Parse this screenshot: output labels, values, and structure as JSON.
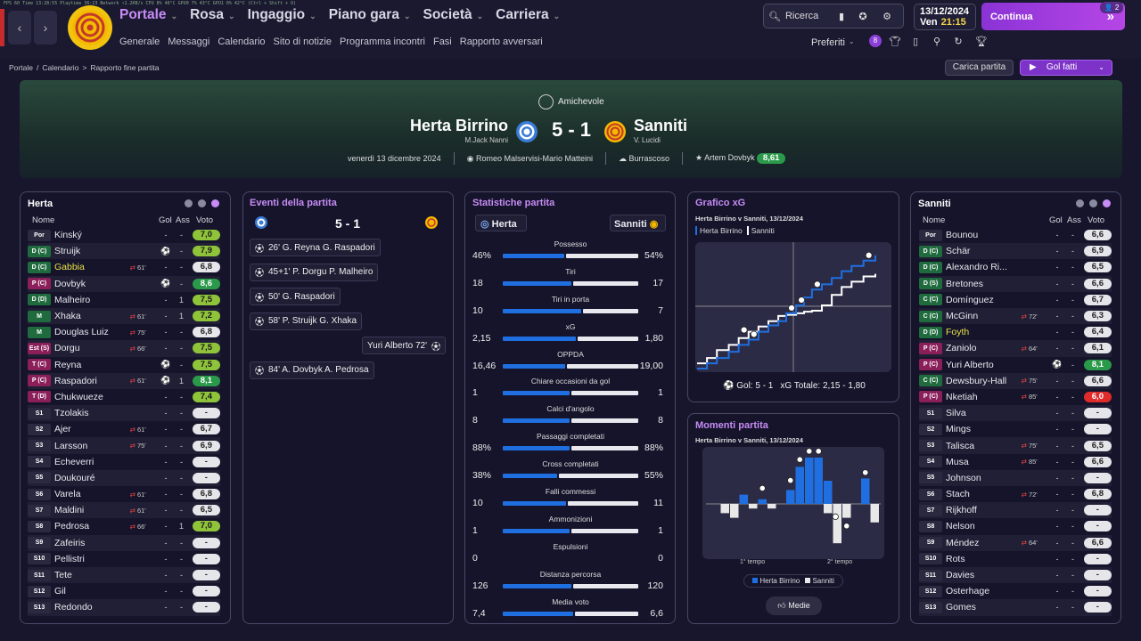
{
  "perf": "FPS 60   Time 13:28:55   Playtime 36:23   Network ↑1.2KB/s   CPU 8% 46°C   GPU0 7% 43°C   GPU1 0% 42°C   (Ctrl + Shift + O)",
  "nav": {
    "items": [
      "Portale",
      "Rosa",
      "Ingaggio",
      "Piano gara",
      "Società",
      "Carriera"
    ],
    "sub": [
      "Generale",
      "Messaggi",
      "Calendario",
      "Sito di notizie",
      "Programma incontri",
      "Fasi",
      "Rapporto avversari"
    ]
  },
  "toolbar": {
    "search": "Ricerca",
    "date": "13/12/2024",
    "day": "Ven",
    "time": "21:15",
    "continue": "Continua",
    "notif": "2",
    "prefs": "Preferiti",
    "badge": "8"
  },
  "breadcrumb": [
    "Portale",
    "Calendario",
    "Rapporto fine partita"
  ],
  "actions": {
    "load": "Carica partita",
    "goals": "Gol fatti"
  },
  "match": {
    "competition": "Amichevole",
    "home": "Herta Birrino",
    "home_coach": "M.Jack Nanni",
    "away": "Sanniti",
    "away_coach": "V. Lucidi",
    "score": "5 - 1",
    "date": "venerdì 13 dicembre 2024",
    "referees": "Romeo Malservisi-Mario Matteini",
    "weather": "Burrascoso",
    "motm": "Artem Dovbyk",
    "motm_rating": "8,61"
  },
  "home_panel": {
    "title": "Herta",
    "h_name": "Nome",
    "h_gol": "Gol",
    "h_ass": "Ass",
    "h_voto": "Voto"
  },
  "away_panel": {
    "title": "Sanniti",
    "h_name": "Nome",
    "h_gol": "Gol",
    "h_ass": "Ass",
    "h_voto": "Voto"
  },
  "home_players": [
    {
      "pos": "Por",
      "name": "Kinský",
      "evt": "",
      "g": "-",
      "a": "-",
      "r": "7,0"
    },
    {
      "pos": "D (C)",
      "name": "Struijk",
      "evt": "",
      "g": "⚽",
      "a": "-",
      "r": "7,9"
    },
    {
      "pos": "D (C)",
      "name": "Gabbia",
      "evt": "61'",
      "g": "-",
      "a": "-",
      "r": "6,8",
      "yellow": true
    },
    {
      "pos": "P (C)",
      "name": "Dovbyk",
      "evt": "",
      "g": "⚽",
      "a": "-",
      "r": "8,6"
    },
    {
      "pos": "D (D)",
      "name": "Malheiro",
      "evt": "",
      "g": "-",
      "a": "1",
      "r": "7,5"
    },
    {
      "pos": "M",
      "name": "Xhaka",
      "evt": "61'",
      "g": "-",
      "a": "1",
      "r": "7,2"
    },
    {
      "pos": "M",
      "name": "Douglas Luiz",
      "evt": "75'",
      "g": "-",
      "a": "-",
      "r": "6,8"
    },
    {
      "pos": "Est (S)",
      "name": "Dorgu",
      "evt": "66'",
      "g": "-",
      "a": "-",
      "r": "7,5"
    },
    {
      "pos": "T (C)",
      "name": "Reyna",
      "evt": "",
      "g": "⚽",
      "a": "-",
      "r": "7,5"
    },
    {
      "pos": "P (C)",
      "name": "Raspadori",
      "evt": "61'",
      "g": "⚽",
      "a": "1",
      "r": "8,1"
    },
    {
      "pos": "T (D)",
      "name": "Chukwueze",
      "evt": "",
      "g": "-",
      "a": "-",
      "r": "7,4"
    },
    {
      "pos": "S1",
      "name": "Tzolakis",
      "evt": "",
      "g": "-",
      "a": "-",
      "r": "-"
    },
    {
      "pos": "S2",
      "name": "Ajer",
      "evt": "61'",
      "g": "-",
      "a": "-",
      "r": "6,7"
    },
    {
      "pos": "S3",
      "name": "Larsson",
      "evt": "75'",
      "g": "-",
      "a": "-",
      "r": "6,9"
    },
    {
      "pos": "S4",
      "name": "Echeverri",
      "evt": "",
      "g": "-",
      "a": "-",
      "r": "-"
    },
    {
      "pos": "S5",
      "name": "Doukouré",
      "evt": "",
      "g": "-",
      "a": "-",
      "r": "-"
    },
    {
      "pos": "S6",
      "name": "Varela",
      "evt": "61'",
      "g": "-",
      "a": "-",
      "r": "6,8"
    },
    {
      "pos": "S7",
      "name": "Maldini",
      "evt": "61'",
      "g": "-",
      "a": "-",
      "r": "6,5"
    },
    {
      "pos": "S8",
      "name": "Pedrosa",
      "evt": "66'",
      "g": "-",
      "a": "1",
      "r": "7,0"
    },
    {
      "pos": "S9",
      "name": "Zafeiris",
      "evt": "",
      "g": "-",
      "a": "-",
      "r": "-"
    },
    {
      "pos": "S10",
      "name": "Pellistri",
      "evt": "",
      "g": "-",
      "a": "-",
      "r": "-"
    },
    {
      "pos": "S11",
      "name": "Tete",
      "evt": "",
      "g": "-",
      "a": "-",
      "r": "-"
    },
    {
      "pos": "S12",
      "name": "Gil",
      "evt": "",
      "g": "-",
      "a": "-",
      "r": "-"
    },
    {
      "pos": "S13",
      "name": "Redondo",
      "evt": "",
      "g": "-",
      "a": "-",
      "r": "-"
    }
  ],
  "away_players": [
    {
      "pos": "Por",
      "name": "Bounou",
      "evt": "",
      "g": "-",
      "a": "-",
      "r": "6,6"
    },
    {
      "pos": "D (C)",
      "name": "Schär",
      "evt": "",
      "g": "-",
      "a": "-",
      "r": "6,9"
    },
    {
      "pos": "D (C)",
      "name": "Alexandro Ri...",
      "evt": "",
      "g": "-",
      "a": "-",
      "r": "6,5"
    },
    {
      "pos": "D (S)",
      "name": "Bretones",
      "evt": "",
      "g": "-",
      "a": "-",
      "r": "6,6"
    },
    {
      "pos": "C (C)",
      "name": "Domínguez",
      "evt": "",
      "g": "-",
      "a": "-",
      "r": "6,7"
    },
    {
      "pos": "C (C)",
      "name": "McGinn",
      "evt": "72'",
      "g": "-",
      "a": "-",
      "r": "6,3"
    },
    {
      "pos": "D (D)",
      "name": "Foyth",
      "evt": "",
      "g": "-",
      "a": "-",
      "r": "6,4",
      "yellow": true
    },
    {
      "pos": "P (C)",
      "name": "Zaniolo",
      "evt": "64'",
      "g": "-",
      "a": "-",
      "r": "6,1"
    },
    {
      "pos": "P (C)",
      "name": "Yuri Alberto",
      "evt": "",
      "g": "⚽",
      "a": "-",
      "r": "8,1"
    },
    {
      "pos": "C (C)",
      "name": "Dewsbury-Hall",
      "evt": "75'",
      "g": "-",
      "a": "-",
      "r": "6,6"
    },
    {
      "pos": "P (C)",
      "name": "Nketiah",
      "evt": "85'",
      "g": "-",
      "a": "-",
      "r": "6,0"
    },
    {
      "pos": "S1",
      "name": "Silva",
      "evt": "",
      "g": "-",
      "a": "-",
      "r": "-"
    },
    {
      "pos": "S2",
      "name": "Mings",
      "evt": "",
      "g": "-",
      "a": "-",
      "r": "-"
    },
    {
      "pos": "S3",
      "name": "Talisca",
      "evt": "75'",
      "g": "-",
      "a": "-",
      "r": "6,5"
    },
    {
      "pos": "S4",
      "name": "Musa",
      "evt": "85'",
      "g": "-",
      "a": "-",
      "r": "6,6"
    },
    {
      "pos": "S5",
      "name": "Johnson",
      "evt": "",
      "g": "-",
      "a": "-",
      "r": "-"
    },
    {
      "pos": "S6",
      "name": "Stach",
      "evt": "72'",
      "g": "-",
      "a": "-",
      "r": "6,8"
    },
    {
      "pos": "S7",
      "name": "Rijkhoff",
      "evt": "",
      "g": "-",
      "a": "-",
      "r": "-"
    },
    {
      "pos": "S8",
      "name": "Nelson",
      "evt": "",
      "g": "-",
      "a": "-",
      "r": "-"
    },
    {
      "pos": "S9",
      "name": "Méndez",
      "evt": "64'",
      "g": "-",
      "a": "-",
      "r": "6,6"
    },
    {
      "pos": "S10",
      "name": "Rots",
      "evt": "",
      "g": "-",
      "a": "-",
      "r": "-"
    },
    {
      "pos": "S11",
      "name": "Davies",
      "evt": "",
      "g": "-",
      "a": "-",
      "r": "-"
    },
    {
      "pos": "S12",
      "name": "Osterhage",
      "evt": "",
      "g": "-",
      "a": "-",
      "r": "-"
    },
    {
      "pos": "S13",
      "name": "Gomes",
      "evt": "",
      "g": "-",
      "a": "-",
      "r": "-"
    }
  ],
  "events": {
    "title": "Eventi della partita",
    "score": "5 - 1",
    "items": [
      {
        "text": "26'  G. Reyna  G. Raspadori",
        "side": "home"
      },
      {
        "text": "45+1'  P. Dorgu  P. Malheiro",
        "side": "home"
      },
      {
        "text": "50'  G. Raspadori",
        "side": "home"
      },
      {
        "text": "58'  P. Struijk  G. Xhaka",
        "side": "home"
      },
      {
        "text": "Yuri Alberto  72'",
        "side": "away"
      },
      {
        "text": "84'  A. Dovbyk  A. Pedrosa",
        "side": "home"
      }
    ]
  },
  "stats": {
    "title": "Statistiche partita",
    "home": "Herta",
    "away": "Sanniti",
    "rows": [
      {
        "label": "Possesso",
        "h": "46%",
        "a": "54%",
        "hv": 46,
        "av": 54
      },
      {
        "label": "Tiri",
        "h": "18",
        "a": "17",
        "hv": 18,
        "av": 17
      },
      {
        "label": "Tiri in porta",
        "h": "10",
        "a": "7",
        "hv": 10,
        "av": 7
      },
      {
        "label": "xG",
        "h": "2,15",
        "a": "1,80",
        "hv": 2.15,
        "av": 1.8
      },
      {
        "label": "OPPDA",
        "h": "16,46",
        "a": "19,00",
        "hv": 16.46,
        "av": 19.0
      },
      {
        "label": "Chiare occasioni da gol",
        "h": "1",
        "a": "1",
        "hv": 1,
        "av": 1
      },
      {
        "label": "Calci d'angolo",
        "h": "8",
        "a": "8",
        "hv": 8,
        "av": 8
      },
      {
        "label": "Passaggi completati",
        "h": "88%",
        "a": "88%",
        "hv": 88,
        "av": 88
      },
      {
        "label": "Cross completati",
        "h": "38%",
        "a": "55%",
        "hv": 38,
        "av": 55
      },
      {
        "label": "Falli commessi",
        "h": "10",
        "a": "11",
        "hv": 10,
        "av": 11
      },
      {
        "label": "Ammonizioni",
        "h": "1",
        "a": "1",
        "hv": 1,
        "av": 1
      },
      {
        "label": "Espulsioni",
        "h": "0",
        "a": "0",
        "hv": 0,
        "av": 0
      },
      {
        "label": "Distanza percorsa",
        "h": "126",
        "a": "120",
        "hv": 126,
        "av": 120
      },
      {
        "label": "Media voto",
        "h": "7,4",
        "a": "6,6",
        "hv": 7.4,
        "av": 6.6
      }
    ]
  },
  "xg": {
    "title": "Grafico xG",
    "subtitle": "Herta Birrino v Sanniti, 13/12/2024",
    "legend_home": "Herta Birrino",
    "legend_away": "Sanniti",
    "goals_label": "Gol: 5 - 1",
    "total_label": "xG Totale: 2,15 - 1,80"
  },
  "momenti": {
    "title": "Momenti partita",
    "subtitle": "Herta Birrino v Sanniti, 13/12/2024",
    "first": "1° tempo",
    "second": "2° tempo",
    "legend_home": "Herta Birrino",
    "legend_away": "Sanniti",
    "button": "Medie"
  },
  "chart_data": [
    {
      "type": "line",
      "title": "Grafico xG",
      "series": [
        {
          "name": "Herta Birrino",
          "color": "#1f6fe0",
          "x": [
            0,
            5,
            10,
            16,
            21,
            26,
            31,
            36,
            41,
            45,
            50,
            54,
            58,
            63,
            68,
            73,
            78,
            84,
            90
          ],
          "y": [
            0,
            0.1,
            0.2,
            0.32,
            0.45,
            0.55,
            0.7,
            0.82,
            0.9,
            1.05,
            1.2,
            1.35,
            1.5,
            1.6,
            1.72,
            1.85,
            1.95,
            2.05,
            2.15
          ]
        },
        {
          "name": "Sanniti",
          "color": "#ffffff",
          "x": [
            0,
            5,
            10,
            16,
            21,
            26,
            31,
            36,
            41,
            45,
            50,
            54,
            58,
            63,
            68,
            73,
            78,
            84,
            90
          ],
          "y": [
            0.1,
            0.2,
            0.35,
            0.45,
            0.58,
            0.7,
            0.8,
            0.9,
            1.0,
            1.02,
            1.05,
            1.08,
            1.1,
            1.2,
            1.4,
            1.55,
            1.65,
            1.75,
            1.8
          ]
        }
      ]
    },
    {
      "type": "bar",
      "title": "Momenti partita",
      "series": [
        {
          "name": "Herta Birrino",
          "color": "#1f6fe0",
          "values": [
            0,
            0,
            0,
            0.2,
            0,
            0.1,
            0,
            0,
            0.3,
            0.8,
            1.0,
            1.0,
            0.5,
            0,
            0,
            0,
            0.55,
            0
          ]
        },
        {
          "name": "Sanniti",
          "color": "#e8e8e8",
          "values": [
            0,
            -0.2,
            -0.3,
            0,
            -0.1,
            0,
            -0.1,
            0,
            0,
            0,
            0,
            0,
            -0.2,
            -0.85,
            -0.3,
            0,
            0,
            -0.4
          ]
        }
      ]
    }
  ]
}
